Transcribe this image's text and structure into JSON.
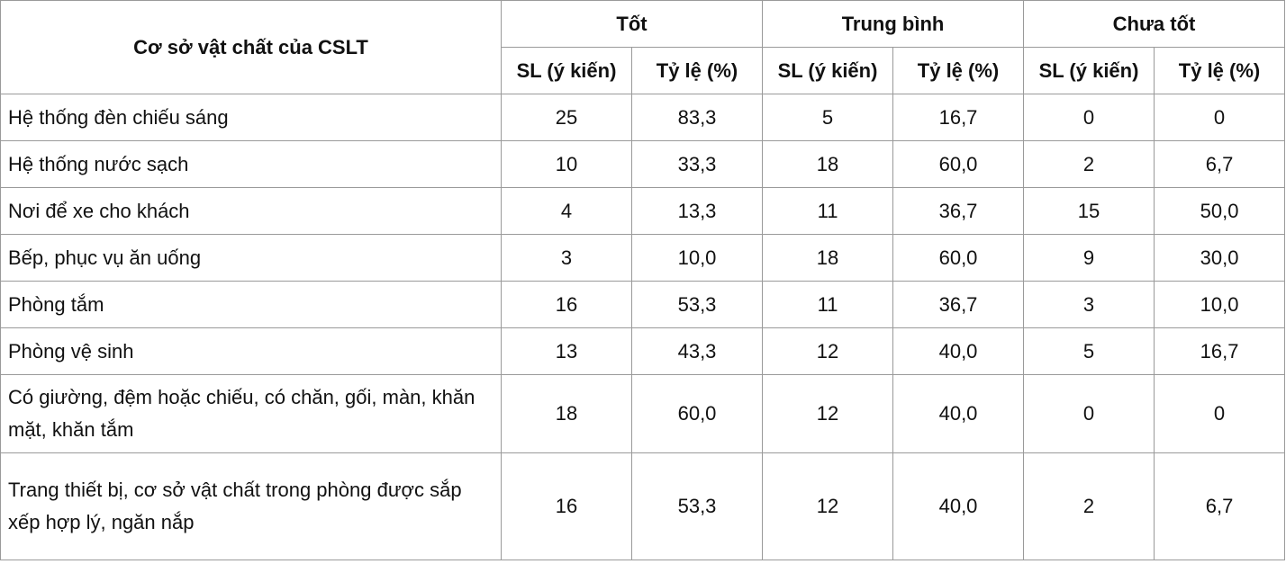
{
  "table": {
    "first_header": "Cơ sở vật chất của CSLT",
    "groups": [
      "Tốt",
      "Trung bình",
      "Chưa tốt"
    ],
    "subheaders": [
      "SL (ý kiến)",
      "Tỷ lệ (%)",
      "SL (ý kiến)",
      "Tỷ lệ (%)",
      "SL (ý kiến)",
      "Tỷ lệ (%)"
    ],
    "rows": [
      [
        "Hệ thống đèn chiếu sáng",
        "25",
        "83,3",
        "5",
        "16,7",
        "0",
        "0"
      ],
      [
        "Hệ thống nước sạch",
        "10",
        "33,3",
        "18",
        "60,0",
        "2",
        "6,7"
      ],
      [
        "Nơi để xe cho khách",
        "4",
        "13,3",
        "11",
        "36,7",
        "15",
        "50,0"
      ],
      [
        "Bếp, phục vụ ăn uống",
        "3",
        "10,0",
        "18",
        "60,0",
        "9",
        "30,0"
      ],
      [
        "Phòng tắm",
        "16",
        "53,3",
        "11",
        "36,7",
        "3",
        "10,0"
      ],
      [
        "Phòng vệ sinh",
        "13",
        "43,3",
        "12",
        "40,0",
        "5",
        "16,7"
      ],
      [
        "Có giường, đệm hoặc chiếu, có chăn, gối, màn, khăn mặt, khăn tắm",
        "18",
        "60,0",
        "12",
        "40,0",
        "0",
        "0"
      ],
      [
        "Trang thiết bị, cơ sở vật chất trong phòng được sắp xếp hợp lý, ngăn nắp",
        "16",
        "53,3",
        "12",
        "40,0",
        "2",
        "6,7"
      ]
    ]
  }
}
